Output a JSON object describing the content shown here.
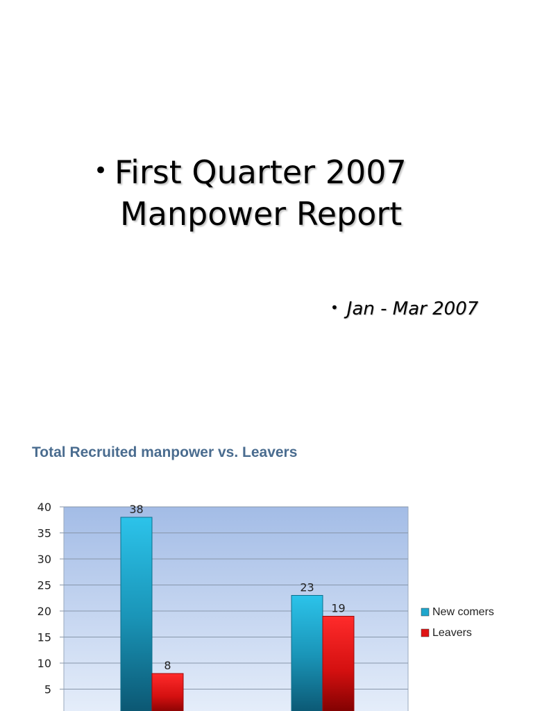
{
  "slide": {
    "title_line1": "First Quarter 2007",
    "title_line2": "Manpower Report",
    "subtitle": "Jan - Mar 2007"
  },
  "chart_data": {
    "type": "bar",
    "title": "Total Recruited manpower vs. Leavers",
    "categories": [
      "",
      ""
    ],
    "series": [
      {
        "name": "New comers",
        "values": [
          38,
          23
        ],
        "color": "#1fa6cc"
      },
      {
        "name": "Leavers",
        "values": [
          8,
          19
        ],
        "color": "#e01414"
      }
    ],
    "ylim": [
      0,
      40
    ],
    "yticks": [
      0,
      5,
      10,
      15,
      20,
      25,
      30,
      35,
      40
    ],
    "grid": true,
    "legend": "right",
    "data_labels": true
  }
}
